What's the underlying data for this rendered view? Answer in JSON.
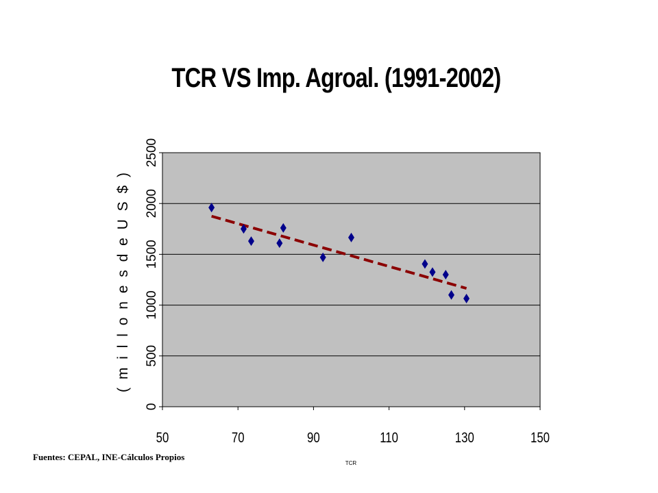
{
  "slide": {
    "source_note": "Fuentes: CEPAL, INE-Cálculos Propios"
  },
  "chart_data": {
    "type": "scatter",
    "title": "TCR VS Imp. Agroal. (1991-2002)",
    "xlabel": "TCR",
    "ylabel": "( m i l l o n e s   d e   U S $ )",
    "xlim": [
      50,
      150
    ],
    "ylim": [
      0,
      2500
    ],
    "x_ticks": [
      50,
      70,
      90,
      110,
      130,
      150
    ],
    "y_ticks": [
      0,
      500,
      1000,
      1500,
      2000,
      2500
    ],
    "grid": "horizontal",
    "plot_background": "#c0c0c0",
    "series": [
      {
        "marker": "diamond",
        "color": "#00008b",
        "points": [
          {
            "x": 63,
            "y": 1960
          },
          {
            "x": 71.5,
            "y": 1750
          },
          {
            "x": 73.5,
            "y": 1630
          },
          {
            "x": 81,
            "y": 1610
          },
          {
            "x": 82,
            "y": 1760
          },
          {
            "x": 92.5,
            "y": 1470
          },
          {
            "x": 100,
            "y": 1665
          },
          {
            "x": 119.5,
            "y": 1405
          },
          {
            "x": 121.5,
            "y": 1325
          },
          {
            "x": 125,
            "y": 1300
          },
          {
            "x": 126.5,
            "y": 1100
          },
          {
            "x": 130.5,
            "y": 1065
          }
        ]
      }
    ],
    "trendline": {
      "style": "dashed",
      "color": "#8b0000",
      "points": [
        {
          "x": 63,
          "y": 1875
        },
        {
          "x": 130.5,
          "y": 1165
        }
      ]
    }
  }
}
